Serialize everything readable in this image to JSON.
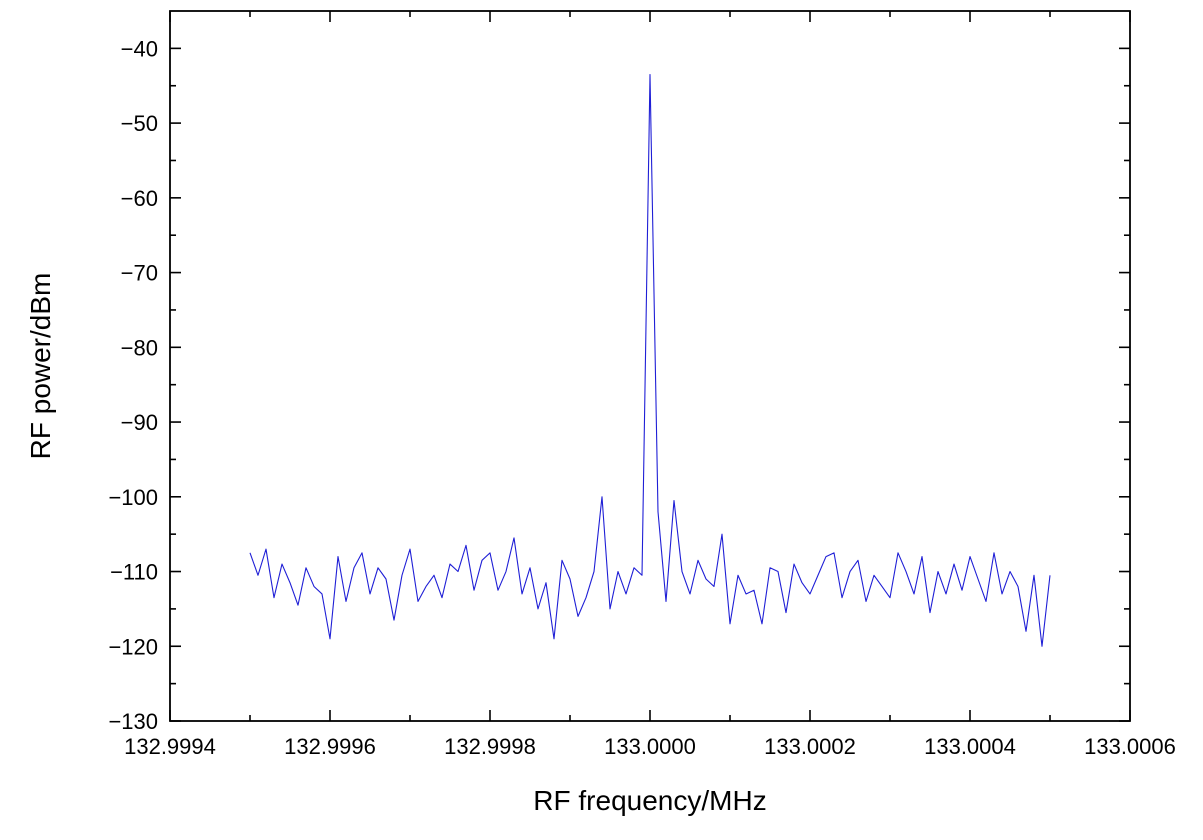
{
  "chart_data": {
    "type": "line",
    "title": "",
    "xlabel": "RF frequency/MHz",
    "ylabel": "RF power/dBm",
    "xlim": [
      132.9994,
      133.0006
    ],
    "ylim": [
      -130,
      -35
    ],
    "xticks": [
      132.9994,
      132.9996,
      132.9998,
      133.0,
      133.0002,
      133.0004,
      133.0006
    ],
    "xtick_labels": [
      "132.9994",
      "132.9996",
      "132.9998",
      "133.0000",
      "133.0002",
      "133.0004",
      "133.0006"
    ],
    "yticks": [
      -130,
      -120,
      -110,
      -100,
      -90,
      -80,
      -70,
      -60,
      -50,
      -40
    ],
    "ytick_labels": [
      "−130",
      "−120",
      "−110",
      "−100",
      "−90",
      "−80",
      "−70",
      "−60",
      "−50",
      "−40"
    ],
    "grid": false,
    "legend": "none",
    "colors": {
      "series": "#1f1fd6",
      "axes": "#000000"
    },
    "series": [
      {
        "x": [
          132.9995,
          132.99951,
          132.99952,
          132.99953,
          132.99954,
          132.99955,
          132.99956,
          132.99957,
          132.99958,
          132.99959,
          132.9996,
          132.99961,
          132.99962,
          132.99963,
          132.99964,
          132.99965,
          132.99966,
          132.99967,
          132.99968,
          132.99969,
          132.9997,
          132.99971,
          132.99972,
          132.99973,
          132.99974,
          132.99975,
          132.99976,
          132.99977,
          132.99978,
          132.99979,
          132.9998,
          132.99981,
          132.99982,
          132.99983,
          132.99984,
          132.99985,
          132.99986,
          132.99987,
          132.99988,
          132.99989,
          132.9999,
          132.99991,
          132.99992,
          132.99993,
          132.99994,
          132.99995,
          132.99996,
          132.99997,
          132.99998,
          132.99999,
          133.0,
          133.00001,
          133.00002,
          133.00003,
          133.00004,
          133.00005,
          133.00006,
          133.00007,
          133.00008,
          133.00009,
          133.0001,
          133.00011,
          133.00012,
          133.00013,
          133.00014,
          133.00015,
          133.00016,
          133.00017,
          133.00018,
          133.00019,
          133.0002,
          133.00021,
          133.00022,
          133.00023,
          133.00024,
          133.00025,
          133.00026,
          133.00027,
          133.00028,
          133.00029,
          133.0003,
          133.00031,
          133.00032,
          133.00033,
          133.00034,
          133.00035,
          133.00036,
          133.00037,
          133.00038,
          133.00039,
          133.0004,
          133.00041,
          133.00042,
          133.00043,
          133.00044,
          133.00045,
          133.00046,
          133.00047,
          133.00048,
          133.00049,
          133.0005
        ],
        "y": [
          -107.5,
          -110.5,
          -107.0,
          -113.5,
          -109.0,
          -111.5,
          -114.5,
          -109.5,
          -112.0,
          -113.0,
          -119.0,
          -108.0,
          -114.0,
          -109.5,
          -107.5,
          -113.0,
          -109.5,
          -111.0,
          -116.5,
          -110.5,
          -107.0,
          -114.0,
          -112.0,
          -110.5,
          -113.5,
          -109.0,
          -110.0,
          -106.5,
          -112.5,
          -108.5,
          -107.5,
          -112.5,
          -110.0,
          -105.5,
          -113.0,
          -109.5,
          -115.0,
          -111.5,
          -119.0,
          -108.5,
          -111.0,
          -116.0,
          -113.5,
          -110.0,
          -100.0,
          -115.0,
          -110.0,
          -113.0,
          -109.5,
          -110.5,
          -43.5,
          -102.0,
          -114.0,
          -100.5,
          -110.0,
          -113.0,
          -108.5,
          -111.0,
          -112.0,
          -105.0,
          -117.0,
          -110.5,
          -113.0,
          -112.5,
          -117.0,
          -109.5,
          -110.0,
          -115.5,
          -109.0,
          -111.5,
          -113.0,
          -110.5,
          -108.0,
          -107.5,
          -113.5,
          -110.0,
          -108.5,
          -114.0,
          -110.5,
          -112.0,
          -113.5,
          -107.5,
          -110.0,
          -113.0,
          -108.0,
          -115.5,
          -110.0,
          -113.0,
          -109.0,
          -112.5,
          -108.0,
          -111.0,
          -114.0,
          -107.5,
          -113.0,
          -110.0,
          -112.0,
          -118.0,
          -110.5,
          -120.0,
          -110.5
        ]
      }
    ]
  }
}
